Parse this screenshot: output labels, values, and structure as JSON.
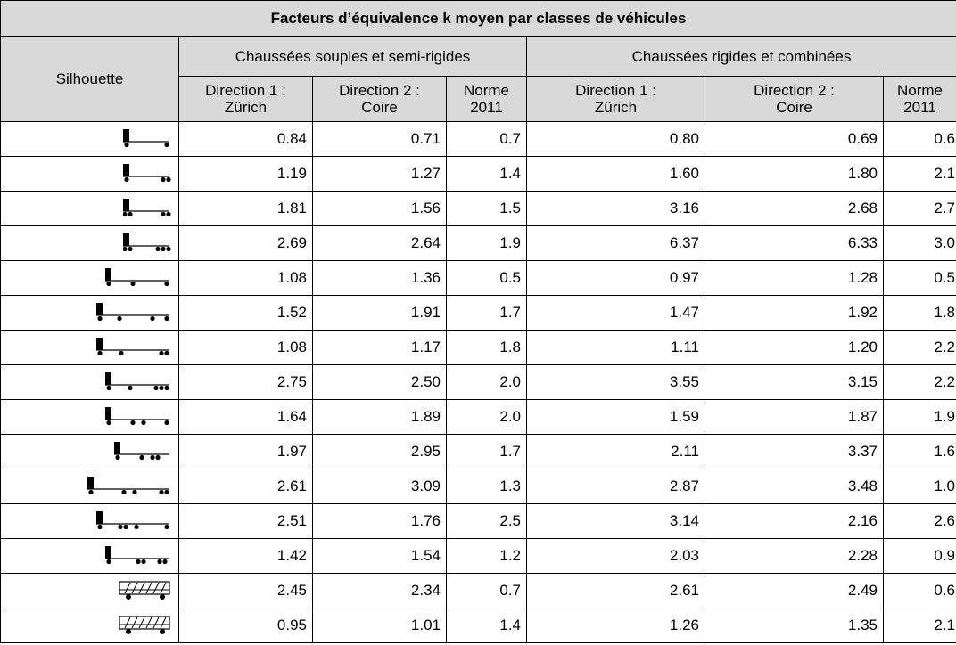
{
  "table": {
    "title": "Facteurs d’équivalence k moyen par classes de véhicules",
    "row_header": "Silhouette",
    "groups": [
      "Chaussées souples et semi-rigides",
      "Chaussées rigides et combinées"
    ],
    "columns": [
      "Direction 1 :\nZürich",
      "Direction 2 :\nCoire",
      "Norme\n2011",
      "Direction 1 :\nZürich",
      "Direction 2 :\nCoire",
      "Norme\n2011"
    ],
    "rows": [
      [
        "0.84",
        "0.71",
        "0.7",
        "0.80",
        "0.69",
        "0.6"
      ],
      [
        "1.19",
        "1.27",
        "1.4",
        "1.60",
        "1.80",
        "2.1"
      ],
      [
        "1.81",
        "1.56",
        "1.5",
        "3.16",
        "2.68",
        "2.7"
      ],
      [
        "2.69",
        "2.64",
        "1.9",
        "6.37",
        "6.33",
        "3.0"
      ],
      [
        "1.08",
        "1.36",
        "0.5",
        "0.97",
        "1.28",
        "0.5"
      ],
      [
        "1.52",
        "1.91",
        "1.7",
        "1.47",
        "1.92",
        "1.8"
      ],
      [
        "1.08",
        "1.17",
        "1.8",
        "1.11",
        "1.20",
        "2.2"
      ],
      [
        "2.75",
        "2.50",
        "2.0",
        "3.55",
        "3.15",
        "2.2"
      ],
      [
        "1.64",
        "1.89",
        "2.0",
        "1.59",
        "1.87",
        "1.9"
      ],
      [
        "1.97",
        "2.95",
        "1.7",
        "2.11",
        "3.37",
        "1.6"
      ],
      [
        "2.61",
        "3.09",
        "1.3",
        "2.87",
        "3.48",
        "1.0"
      ],
      [
        "2.51",
        "1.76",
        "2.5",
        "3.14",
        "2.16",
        "2.6"
      ],
      [
        "1.42",
        "1.54",
        "1.2",
        "2.03",
        "2.28",
        "0.9"
      ],
      [
        "2.45",
        "2.34",
        "0.7",
        "2.61",
        "2.49",
        "0.6"
      ],
      [
        "0.95",
        "1.01",
        "1.4",
        "1.26",
        "1.35",
        "2.1"
      ]
    ]
  }
}
